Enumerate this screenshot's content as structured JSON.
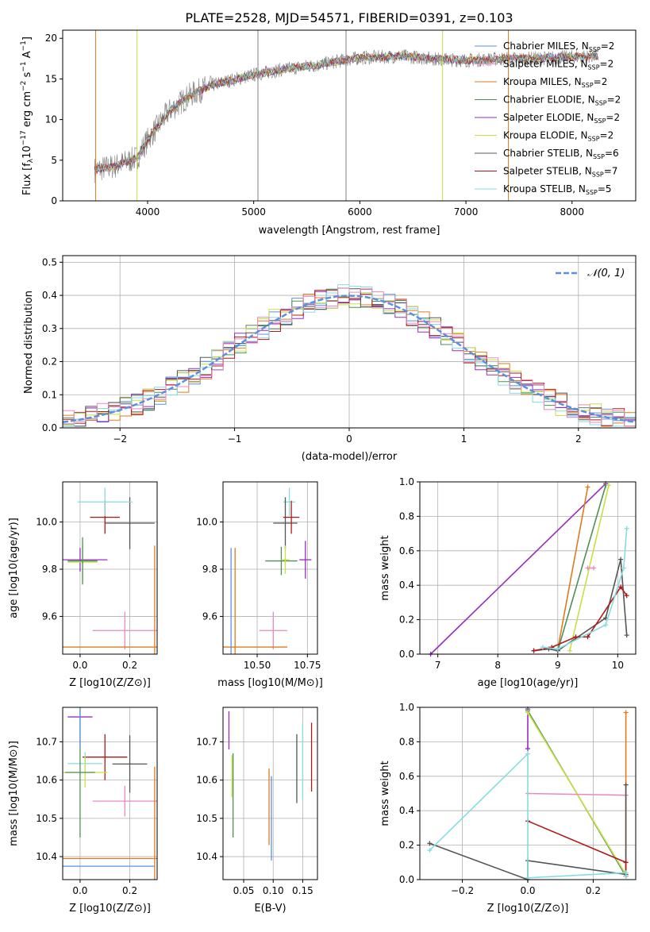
{
  "colors": {
    "blue": "#5b8fe0",
    "orange": "#e07a1f",
    "green": "#4f8f5a",
    "purple": "#9a2bc0",
    "yellowgreen": "#c8e040",
    "gray": "#555555",
    "darkred": "#b01818",
    "cyan": "#85dde0",
    "pink": "#e88ac0",
    "lightgray": "#808080"
  },
  "chart_data": [
    {
      "id": "spectrum",
      "type": "line",
      "title": "PLATE=2528, MJD=54571, FIBERID=0391, z=0.103",
      "xlabel": "wavelength [Angstrom, rest frame]",
      "ylabel": "Flux [f_λ10^-17 erg cm^-2 s^-1 A^-1]",
      "xlim": [
        3200,
        8600
      ],
      "ylim": [
        0,
        21
      ],
      "xticks": [
        "4000",
        "5000",
        "6000",
        "7000",
        "8000"
      ],
      "yticks": [
        "0",
        "5",
        "10",
        "15",
        "20"
      ],
      "continuum": {
        "x": [
          3500,
          3700,
          3900,
          4000,
          4200,
          4400,
          4600,
          4800,
          5000,
          5200,
          5400,
          5600,
          5800,
          6000,
          6200,
          6400,
          6600,
          6800,
          7000,
          7200,
          7400,
          7600,
          7800,
          8000,
          8200
        ],
        "y": [
          3.8,
          4.3,
          5.3,
          7.5,
          11.0,
          13.0,
          14.2,
          14.9,
          15.5,
          16.0,
          16.4,
          16.7,
          17.2,
          17.6,
          17.7,
          17.8,
          17.6,
          17.4,
          17.3,
          17.4,
          17.5,
          17.5,
          17.6,
          17.7,
          17.8
        ]
      },
      "legend": [
        {
          "label": "Chabrier MILES, N",
          "sub": "SSP",
          "tail": "=2",
          "color": "blue"
        },
        {
          "label": "Salpeter MILES, N",
          "sub": "SSP",
          "tail": "=2",
          "color": "pink"
        },
        {
          "label": "Kroupa MILES, N",
          "sub": "SSP",
          "tail": "=2",
          "color": "orange"
        },
        {
          "label": "Chabrier ELODIE, N",
          "sub": "SSP",
          "tail": "=2",
          "color": "green"
        },
        {
          "label": "Salpeter ELODIE, N",
          "sub": "SSP",
          "tail": "=2",
          "color": "purple"
        },
        {
          "label": "Kroupa ELODIE, N",
          "sub": "SSP",
          "tail": "=2",
          "color": "yellowgreen"
        },
        {
          "label": "Chabrier STELIB, N",
          "sub": "SSP",
          "tail": "=6",
          "color": "gray"
        },
        {
          "label": "Salpeter STELIB, N",
          "sub": "SSP",
          "tail": "=7",
          "color": "darkred"
        },
        {
          "label": "Kroupa STELIB, N",
          "sub": "SSP",
          "tail": "=5",
          "color": "cyan"
        }
      ]
    },
    {
      "id": "residuals",
      "type": "line",
      "xlabel": "(data-model)/error",
      "ylabel": "Normed distribution",
      "xlim": [
        -2.5,
        2.5
      ],
      "ylim": [
        0,
        0.52
      ],
      "xticks": [
        "−2",
        "−1",
        "0",
        "1",
        "2"
      ],
      "yticks": [
        "0.0",
        "0.1",
        "0.2",
        "0.3",
        "0.4",
        "0.5"
      ],
      "legend_label": "N(0, 1)",
      "normal": {
        "mu": 0,
        "sigma": 1
      }
    },
    {
      "id": "age-vs-Z",
      "type": "scatter",
      "xlabel": "Z [log10(Z/Z⊙)]",
      "ylabel": "age  [log10(age/yr)]",
      "xlim": [
        -0.07,
        0.31
      ],
      "ylim": [
        9.44,
        10.17
      ],
      "xticks": [
        "0.0",
        "0.2"
      ],
      "yticks": [
        "9.6",
        "9.8",
        "10.0"
      ],
      "points": [
        {
          "x": 0.2,
          "y": 9.995,
          "xerr": 0.1,
          "yerr": 0.11,
          "color": "gray"
        },
        {
          "x": 0.1,
          "y": 10.02,
          "xerr": 0.06,
          "yerr": 0.07,
          "color": "darkred"
        },
        {
          "x": 0.1,
          "y": 10.085,
          "xerr": 0.11,
          "yerr": 0.06,
          "color": "cyan"
        },
        {
          "x": 0.0,
          "y": 9.84,
          "xerr": 0.11,
          "yerr": 0.05,
          "color": "purple"
        },
        {
          "x": 0.01,
          "y": 9.83,
          "xerr": 0.06,
          "yerr": 0.08,
          "color": "yellowgreen"
        },
        {
          "x": 0.01,
          "y": 9.835,
          "xerr": 0.06,
          "yerr": 0.1,
          "color": "green"
        },
        {
          "x": 0.18,
          "y": 9.54,
          "xerr": 0.13,
          "yerr": 0.08,
          "color": "pink"
        },
        {
          "x": 0.3,
          "y": 9.47,
          "xerr": 0.37,
          "yerr": 0.43,
          "color": "orange"
        }
      ]
    },
    {
      "id": "age-vs-mass",
      "type": "scatter",
      "xlabel": "mass [log10(M/M⊙)]",
      "ylabel": "",
      "xlim": [
        10.33,
        10.8
      ],
      "ylim": [
        9.44,
        10.17
      ],
      "xticks": [
        "10.50",
        "10.75"
      ],
      "yticks": [
        "9.6",
        "9.8",
        "10.0"
      ],
      "points": [
        {
          "x": 10.66,
          "y": 10.085,
          "xerr": 0.03,
          "yerr": 0.06,
          "color": "cyan"
        },
        {
          "x": 10.64,
          "y": 9.995,
          "xerr": 0.06,
          "yerr": 0.11,
          "color": "gray"
        },
        {
          "x": 10.67,
          "y": 10.02,
          "xerr": 0.04,
          "yerr": 0.07,
          "color": "darkred"
        },
        {
          "x": 10.62,
          "y": 9.835,
          "xerr": 0.08,
          "yerr": 0.06,
          "color": "green"
        },
        {
          "x": 10.64,
          "y": 9.84,
          "xerr": 0.02,
          "yerr": 0.06,
          "color": "yellowgreen"
        },
        {
          "x": 10.74,
          "y": 9.84,
          "xerr": 0.03,
          "yerr": 0.08,
          "color": "purple"
        },
        {
          "x": 10.58,
          "y": 9.54,
          "xerr": 0.07,
          "yerr": 0.08,
          "color": "pink"
        },
        {
          "x": 10.39,
          "y": 9.47,
          "xerr": 0.26,
          "yerr": 0.42,
          "color": "orange"
        },
        {
          "x": 10.37,
          "y": 9.47,
          "xerr": 0.0,
          "yerr": 0.42,
          "color": "blue"
        }
      ]
    },
    {
      "id": "weight-vs-age",
      "type": "line",
      "xlabel": "age  [log10(age/yr)]",
      "ylabel": "mass weight",
      "xlim": [
        6.7,
        10.3
      ],
      "ylim": [
        0,
        1
      ],
      "xticks": [
        "7",
        "8",
        "9",
        "10"
      ],
      "yticks": [
        "0.0",
        "0.2",
        "0.4",
        "0.6",
        "0.8",
        "1.0"
      ],
      "series": [
        {
          "color": "purple",
          "x": [
            6.88,
            9.8
          ],
          "y": [
            0.0,
            0.99
          ]
        },
        {
          "color": "orange",
          "x": [
            9.0,
            9.5
          ],
          "y": [
            0.03,
            0.97
          ]
        },
        {
          "color": "green",
          "x": [
            9.0,
            9.8
          ],
          "y": [
            0.02,
            0.98
          ]
        },
        {
          "color": "yellowgreen",
          "x": [
            9.2,
            9.85
          ],
          "y": [
            0.02,
            0.98
          ]
        },
        {
          "color": "pink",
          "x": [
            9.5,
            9.6
          ],
          "y": [
            0.5,
            0.5
          ]
        },
        {
          "color": "gray",
          "x": [
            8.6,
            8.85,
            9.0,
            9.8,
            10.05,
            10.15
          ],
          "y": [
            0.02,
            0.03,
            0.02,
            0.21,
            0.55,
            0.11
          ]
        },
        {
          "color": "darkred",
          "x": [
            8.6,
            8.9,
            9.3,
            9.5,
            10.05,
            10.15
          ],
          "y": [
            0.02,
            0.04,
            0.1,
            0.1,
            0.39,
            0.34
          ]
        },
        {
          "color": "cyan",
          "x": [
            8.75,
            9.0,
            9.8,
            10.1,
            10.15
          ],
          "y": [
            0.04,
            0.03,
            0.17,
            0.5,
            0.73
          ]
        }
      ]
    },
    {
      "id": "mass-vs-Z",
      "type": "scatter",
      "xlabel": "Z [log10(Z/Z⊙)]",
      "ylabel": "mass [log10(M/M⊙)]",
      "xlim": [
        -0.07,
        0.31
      ],
      "ylim": [
        10.34,
        10.79
      ],
      "xticks": [
        "0.0",
        "0.2"
      ],
      "yticks": [
        "10.4",
        "10.5",
        "10.6",
        "10.7"
      ],
      "points": [
        {
          "x": 0.0,
          "y": 10.765,
          "xerr": 0.05,
          "yerr": 0.0,
          "color": "purple"
        },
        {
          "x": 0.2,
          "y": 10.642,
          "xerr": 0.07,
          "yerr": 0.075,
          "color": "gray"
        },
        {
          "x": 0.1,
          "y": 10.66,
          "xerr": 0.09,
          "yerr": 0.06,
          "color": "darkred"
        },
        {
          "x": 0.02,
          "y": 10.643,
          "xerr": 0.07,
          "yerr": 0.03,
          "color": "cyan"
        },
        {
          "x": 0.02,
          "y": 10.62,
          "xerr": 0.09,
          "yerr": 0.04,
          "color": "yellowgreen"
        },
        {
          "x": 0.0,
          "y": 10.62,
          "xerr": 0.06,
          "yerr": 0.17,
          "color": "green"
        },
        {
          "x": 0.18,
          "y": 10.545,
          "xerr": 0.13,
          "yerr": 0.04,
          "color": "pink"
        },
        {
          "x": 0.3,
          "y": 10.395,
          "xerr": 0.37,
          "yerr": 0.24,
          "color": "orange"
        },
        {
          "x": 0.0,
          "y": 10.375,
          "xerr": 0.3,
          "yerr": 0.0,
          "color": "blue"
        },
        {
          "x": 0.0,
          "y": 10.735,
          "xerr": 0.0,
          "yerr": 0.05,
          "color": "blue"
        }
      ]
    },
    {
      "id": "mass-vs-EBV",
      "type": "scatter",
      "xlabel": "E(B-V)",
      "ylabel": "",
      "xlim": [
        0.015,
        0.175
      ],
      "ylim": [
        10.34,
        10.79
      ],
      "xticks": [
        "0.05",
        "0.10",
        "0.15"
      ],
      "yticks": [
        "10.4",
        "10.5",
        "10.6",
        "10.7"
      ],
      "points": [
        {
          "x": 0.025,
          "y": 10.73,
          "xerr": 0.0,
          "yerr": 0.05,
          "color": "purple"
        },
        {
          "x": 0.03,
          "y": 10.61,
          "xerr": 0.0,
          "yerr": 0.055,
          "color": "yellowgreen"
        },
        {
          "x": 0.032,
          "y": 10.56,
          "xerr": 0.0,
          "yerr": 0.11,
          "color": "green"
        },
        {
          "x": 0.093,
          "y": 10.53,
          "xerr": 0.0,
          "yerr": 0.1,
          "color": "orange"
        },
        {
          "x": 0.097,
          "y": 10.5,
          "xerr": 0.0,
          "yerr": 0.11,
          "color": "blue"
        },
        {
          "x": 0.14,
          "y": 10.63,
          "xerr": 0.0,
          "yerr": 0.09,
          "color": "gray"
        },
        {
          "x": 0.15,
          "y": 10.65,
          "xerr": 0.0,
          "yerr": 0.1,
          "color": "cyan"
        },
        {
          "x": 0.165,
          "y": 10.66,
          "xerr": 0.0,
          "yerr": 0.09,
          "color": "darkred"
        }
      ]
    },
    {
      "id": "weight-vs-Z",
      "type": "line",
      "xlabel": "Z [log10(Z/Z⊙)]",
      "ylabel": "mass weight",
      "xlim": [
        -0.33,
        0.33
      ],
      "ylim": [
        0,
        1
      ],
      "xticks": [
        "−0.2",
        "0.0",
        "0.2"
      ],
      "yticks": [
        "0.0",
        "0.2",
        "0.4",
        "0.6",
        "0.8",
        "1.0"
      ],
      "series": [
        {
          "color": "purple",
          "x": [
            0.0,
            0.0
          ],
          "y": [
            0.76,
            0.99
          ]
        },
        {
          "color": "green",
          "x": [
            0.0,
            0.3
          ],
          "y": [
            0.98,
            0.02
          ]
        },
        {
          "color": "yellowgreen",
          "x": [
            0.0,
            0.3
          ],
          "y": [
            0.97,
            0.03
          ]
        },
        {
          "color": "orange",
          "x": [
            0.3,
            0.3
          ],
          "y": [
            0.03,
            0.97
          ]
        },
        {
          "color": "pink",
          "x": [
            0.0,
            0.3
          ],
          "y": [
            0.5,
            0.49
          ]
        },
        {
          "color": "gray",
          "x": [
            -0.3,
            0.0,
            0.0,
            0.3,
            0.3
          ],
          "y": [
            0.21,
            0.0,
            0.11,
            0.03,
            0.55
          ]
        },
        {
          "color": "darkred",
          "x": [
            0.0,
            0.3,
            0.3
          ],
          "y": [
            0.34,
            0.1,
            0.02
          ]
        },
        {
          "color": "cyan",
          "x": [
            -0.3,
            0.0,
            0.0,
            0.3,
            0.3
          ],
          "y": [
            0.17,
            0.73,
            0.01,
            0.04,
            0.02
          ]
        }
      ]
    }
  ]
}
